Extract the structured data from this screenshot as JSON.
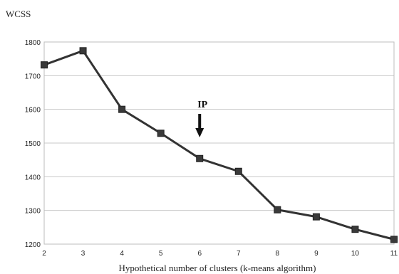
{
  "chart_data": {
    "type": "line",
    "title": "",
    "xlabel": "Hypothetical number of clusters (k-means algorithm)",
    "ylabel": "WCSS",
    "x": [
      2,
      3,
      4,
      5,
      6,
      7,
      8,
      9,
      10,
      11
    ],
    "y": [
      1732,
      1774,
      1600,
      1529,
      1454,
      1416,
      1302,
      1281,
      1244,
      1214
    ],
    "x_ticks": [
      "2",
      "3",
      "4",
      "5",
      "6",
      "7",
      "8",
      "9",
      "10",
      "11"
    ],
    "y_ticks": [
      "1200",
      "1300",
      "1400",
      "1500",
      "1600",
      "1700",
      "1800"
    ],
    "xlim": [
      2,
      11
    ],
    "ylim": [
      1200,
      1800
    ],
    "grid": "horizontal",
    "marker": "square",
    "line_color": "#333333",
    "annotations": [
      {
        "text": "IP",
        "x": 6,
        "arrow": "down"
      }
    ]
  }
}
